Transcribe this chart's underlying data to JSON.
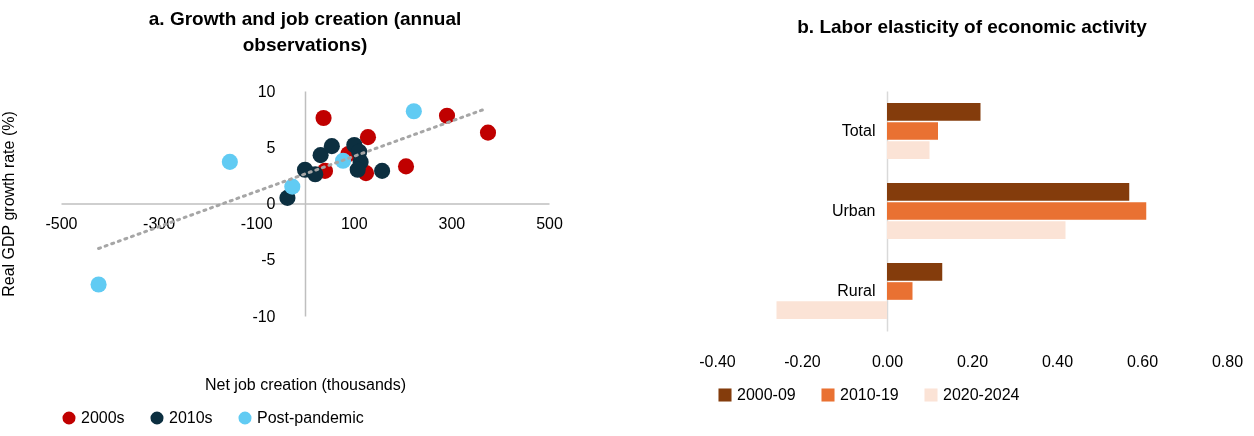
{
  "chart_data": [
    {
      "type": "scatter",
      "title": "a. Growth and job creation (annual observations)",
      "xlabel": "Net job creation (thousands)",
      "ylabel": "Real GDP growth rate (%)",
      "xlim": [
        -500,
        500
      ],
      "xticks": [
        -500,
        -300,
        -100,
        100,
        300,
        500
      ],
      "ylim": [
        -10,
        10
      ],
      "yticks": [
        -10,
        -5,
        0,
        5,
        10
      ],
      "legend": "bottom",
      "marker": "circle",
      "series": [
        {
          "name": "2000s",
          "color": "#c00000",
          "x": [
            38,
            129,
            291,
            375,
            207,
            41,
            125,
            89
          ],
          "values": [
            7.6,
            5.9,
            7.8,
            6.3,
            3.3,
            2.9,
            2.7,
            4.4
          ]
        },
        {
          "name": "2010s",
          "color": "#0c2f40",
          "x": [
            -36,
            0,
            21,
            32,
            55,
            101,
            111,
            114,
            108,
            158
          ],
          "values": [
            0.5,
            3.0,
            2.6,
            4.3,
            5.1,
            5.2,
            4.6,
            3.7,
            3.0,
            2.9
          ]
        },
        {
          "name": "Post-pandemic",
          "color": "#61cbf3",
          "x": [
            -154,
            -423,
            -26,
            78,
            223
          ],
          "values": [
            3.7,
            -7.2,
            1.5,
            3.8,
            8.2
          ]
        },
        {
          "type": "line",
          "color": "#a6a6a6",
          "line_style": "dotted",
          "marker": "none",
          "x": [
            -423,
            369
          ],
          "values": [
            -4.0,
            8.4
          ]
        }
      ]
    },
    {
      "type": "bar",
      "orientation": "horizontal",
      "title": "b. Labor elasticity of economic activity",
      "categories": [
        "Total",
        "Urban",
        "Rural"
      ],
      "xlim": [
        -0.4,
        0.8
      ],
      "xticks": [
        {
          "value": -0.4,
          "label": "-0.40"
        },
        {
          "value": -0.2,
          "label": "-0.20"
        },
        {
          "value": 0,
          "label": "0.00"
        },
        {
          "value": 0.2,
          "label": "0.20"
        },
        {
          "value": 0.4,
          "label": "0.40"
        },
        {
          "value": 0.6,
          "label": "0.60"
        },
        {
          "value": 0.8,
          "label": "0.80"
        }
      ],
      "legend": "bottom",
      "series": [
        {
          "name": "2000-09",
          "color": "#843c0c",
          "values": [
            0.22,
            0.57,
            0.13
          ]
        },
        {
          "name": "2010-19",
          "color": "#e97132",
          "values": [
            0.12,
            0.61,
            0.06
          ]
        },
        {
          "name": "2020-2024",
          "color": "#fbe3d6",
          "values": [
            0.1,
            0.42,
            -0.26
          ]
        }
      ]
    }
  ]
}
